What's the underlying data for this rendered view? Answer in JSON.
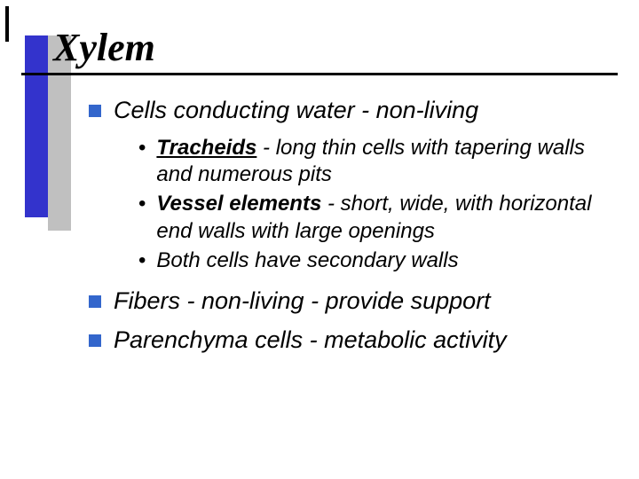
{
  "slide": {
    "title": "Xylem",
    "title_font": "Times New Roman",
    "title_fontsize": 44,
    "title_style": "italic bold",
    "sidebar_blue_color": "#3333cc",
    "sidebar_gray_color": "#c0c0c0",
    "underline_color": "#000000",
    "background_color": "#ffffff",
    "bullets": [
      {
        "square_color": "#3366cc",
        "text": "Cells conducting water  - non-living",
        "sub": [
          {
            "term": "Tracheids",
            "rest": " - long thin cells with tapering walls and numerous pits",
            "term_underline": true
          },
          {
            "term": "Vessel elements",
            "rest": " - short, wide, with horizontal end walls with large openings",
            "term_underline": false
          },
          {
            "term": "",
            "rest": "Both cells have secondary walls",
            "term_underline": false
          }
        ]
      },
      {
        "square_color": "#3366cc",
        "text": "Fibers  - non-living - provide support",
        "sub": []
      },
      {
        "square_color": "#3366cc",
        "text": "Parenchyma cells - metabolic activity",
        "sub": []
      }
    ],
    "body_fontsize": 27,
    "sub_fontsize": 24
  }
}
